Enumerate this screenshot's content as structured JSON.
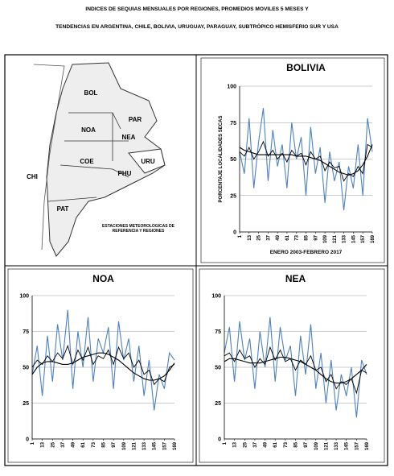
{
  "header": {
    "title_line1": "INDICES DE SEQUIAS MENSUALES POR REGIONES, PROMEDIOS MOVILES 5 MESES Y",
    "title_line2": "TENDENCIAS EN ARGENTINA, CHILE, BOLIVIA, URUGUAY, PARAGUAY, SUBTRÓPICO HEMISFERIO SUR Y USA"
  },
  "map": {
    "labels": [
      "BOL",
      "PAR",
      "NOA",
      "NEA",
      "COE",
      "URU",
      "PHU",
      "CHI",
      "PAT"
    ],
    "caption": "ESTACIONES METEOROLÓGICAS DE REFERENCIA Y REGIONES"
  },
  "chart_data": [
    {
      "type": "line",
      "title": "BOLIVIA",
      "y_label": "PORCENTAJE LOCALIDADES SECAS",
      "x_label": "ENERO 2003-FEBRERO 2017",
      "x": [
        1,
        7,
        13,
        19,
        25,
        31,
        37,
        43,
        49,
        55,
        61,
        67,
        73,
        79,
        85,
        91,
        97,
        103,
        109,
        115,
        121,
        127,
        133,
        139,
        145,
        151,
        157,
        163,
        169
      ],
      "xlim": [
        1,
        169
      ],
      "xticks": [
        1,
        13,
        25,
        37,
        49,
        61,
        73,
        85,
        97,
        109,
        121,
        133,
        145,
        157,
        169
      ],
      "ylim": [
        0,
        100
      ],
      "yticks": [
        0,
        25,
        50,
        75,
        100
      ],
      "grid": true,
      "series": [
        {
          "color": "#4f81bd",
          "values": [
            55,
            40,
            78,
            30,
            62,
            85,
            35,
            70,
            45,
            60,
            30,
            75,
            50,
            65,
            25,
            72,
            40,
            58,
            20,
            55,
            35,
            48,
            15,
            45,
            30,
            60,
            25,
            78,
            55
          ]
        },
        {
          "color": "#000000",
          "values": [
            55,
            52,
            58,
            50,
            55,
            62,
            52,
            56,
            50,
            54,
            48,
            56,
            52,
            54,
            46,
            55,
            50,
            52,
            42,
            48,
            44,
            45,
            35,
            40,
            38,
            45,
            40,
            60,
            58
          ]
        },
        {
          "color": "#000000",
          "values": [
            58,
            56,
            55,
            54,
            53,
            53,
            53,
            53,
            53,
            53,
            53,
            53,
            52,
            52,
            52,
            51,
            50,
            49,
            47,
            45,
            43,
            41,
            40,
            39,
            40,
            42,
            46,
            52,
            60
          ]
        }
      ]
    },
    {
      "type": "line",
      "title": "NOA",
      "x": [
        1,
        7,
        13,
        19,
        25,
        31,
        37,
        43,
        49,
        55,
        61,
        67,
        73,
        79,
        85,
        91,
        97,
        103,
        109,
        115,
        121,
        127,
        133,
        139,
        145,
        151,
        157,
        163,
        169
      ],
      "xlim": [
        1,
        169
      ],
      "xticks": [
        1,
        13,
        25,
        37,
        49,
        61,
        73,
        85,
        97,
        109,
        121,
        133,
        145,
        157,
        169
      ],
      "ylim": [
        0,
        100
      ],
      "yticks": [
        0,
        25,
        50,
        75,
        100
      ],
      "grid": true,
      "series": [
        {
          "color": "#4f81bd",
          "values": [
            45,
            65,
            30,
            72,
            40,
            80,
            55,
            90,
            35,
            75,
            50,
            85,
            40,
            70,
            60,
            78,
            35,
            82,
            55,
            70,
            40,
            65,
            30,
            55,
            20,
            45,
            35,
            60,
            55
          ]
        },
        {
          "color": "#000000",
          "values": [
            50,
            55,
            52,
            58,
            54,
            60,
            56,
            65,
            52,
            62,
            55,
            64,
            52,
            58,
            56,
            62,
            52,
            64,
            56,
            60,
            50,
            55,
            45,
            48,
            38,
            42,
            40,
            50,
            52
          ]
        },
        {
          "color": "#000000",
          "values": [
            45,
            50,
            53,
            54,
            54,
            53,
            52,
            52,
            53,
            55,
            57,
            58,
            59,
            60,
            60,
            59,
            57,
            55,
            52,
            49,
            46,
            44,
            42,
            41,
            41,
            42,
            44,
            48,
            53
          ]
        }
      ]
    },
    {
      "type": "line",
      "title": "NEA",
      "x": [
        1,
        7,
        13,
        19,
        25,
        31,
        37,
        43,
        49,
        55,
        61,
        67,
        73,
        79,
        85,
        91,
        97,
        103,
        109,
        115,
        121,
        127,
        133,
        139,
        145,
        151,
        157,
        163,
        169
      ],
      "xlim": [
        1,
        169
      ],
      "xticks": [
        1,
        13,
        25,
        37,
        49,
        61,
        73,
        85,
        97,
        109,
        121,
        133,
        145,
        157,
        169
      ],
      "ylim": [
        0,
        100
      ],
      "yticks": [
        0,
        25,
        50,
        75,
        100
      ],
      "grid": true,
      "series": [
        {
          "color": "#4f81bd",
          "values": [
            60,
            78,
            40,
            82,
            55,
            70,
            35,
            75,
            50,
            85,
            40,
            78,
            55,
            65,
            30,
            72,
            45,
            80,
            35,
            60,
            25,
            55,
            20,
            45,
            30,
            50,
            15,
            55,
            45
          ]
        },
        {
          "color": "#000000",
          "values": [
            58,
            60,
            54,
            62,
            56,
            58,
            50,
            56,
            52,
            64,
            55,
            62,
            54,
            56,
            48,
            55,
            52,
            58,
            48,
            50,
            40,
            45,
            35,
            40,
            38,
            42,
            32,
            48,
            46
          ]
        },
        {
          "color": "#000000",
          "values": [
            54,
            56,
            56,
            55,
            54,
            53,
            53,
            53,
            54,
            55,
            56,
            57,
            57,
            56,
            55,
            54,
            52,
            50,
            48,
            45,
            42,
            40,
            39,
            39,
            40,
            42,
            45,
            48,
            52
          ]
        }
      ]
    }
  ]
}
